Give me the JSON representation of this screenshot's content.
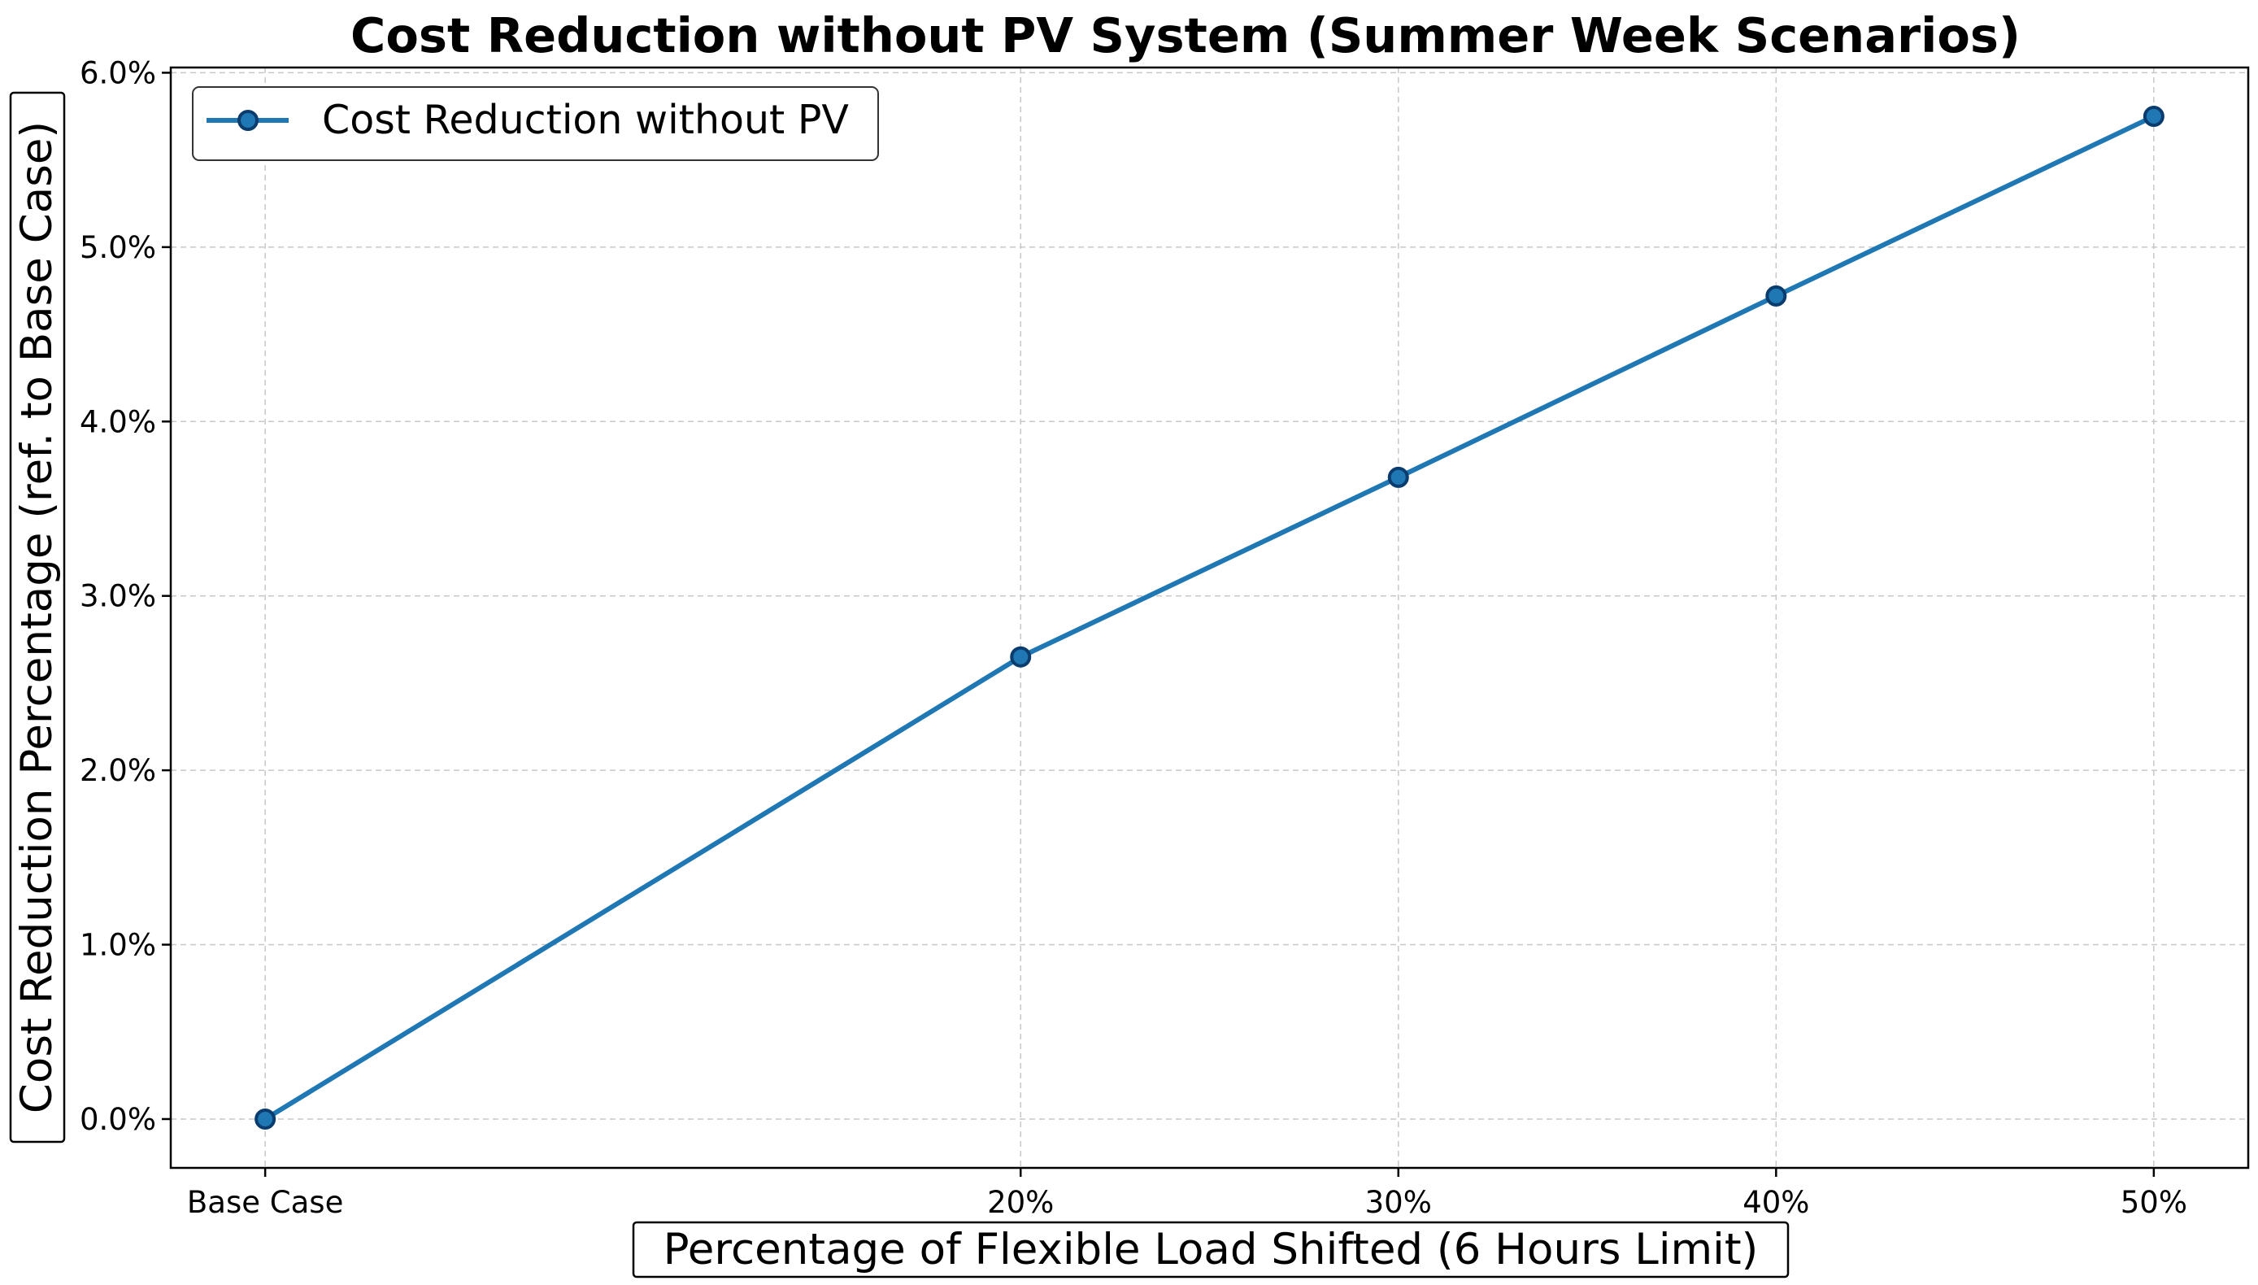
{
  "chart_data": {
    "type": "line",
    "title": "Cost Reduction without PV System (Summer Week Scenarios)",
    "xlabel": "Percentage of Flexible Load Shifted (6 Hours Limit)",
    "ylabel": "Cost Reduction Percentage (ref. to Base Case)",
    "x": [
      0,
      20,
      30,
      40,
      50
    ],
    "x_tick_labels": [
      "Base Case",
      "20%",
      "30%",
      "40%",
      "50%"
    ],
    "y_ticks": [
      0,
      1,
      2,
      3,
      4,
      5,
      6
    ],
    "y_tick_labels": [
      "0.0%",
      "1.0%",
      "2.0%",
      "3.0%",
      "4.0%",
      "5.0%",
      "6.0%"
    ],
    "ylim": [
      -0.28,
      6.03
    ],
    "xlim": [
      -2.5,
      52.5
    ],
    "grid": true,
    "legend_position": "upper-left",
    "series": [
      {
        "name": "Cost Reduction without PV",
        "color": "#1f77b4",
        "marker_edge_color": "#0b3c6e",
        "values": [
          0.0,
          2.65,
          3.68,
          4.72,
          5.75
        ]
      }
    ]
  }
}
